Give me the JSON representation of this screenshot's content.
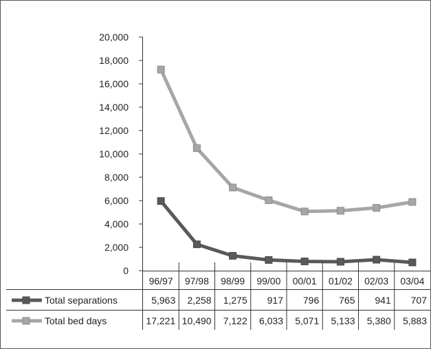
{
  "chart_data": {
    "type": "line",
    "categories": [
      "96/97",
      "97/98",
      "98/99",
      "99/00",
      "00/01",
      "01/02",
      "02/03",
      "03/04"
    ],
    "series": [
      {
        "name": "Total separations",
        "values": [
          5963,
          2258,
          1275,
          917,
          796,
          765,
          941,
          707
        ],
        "labels": [
          "5,963",
          "2,258",
          "1,275",
          "917",
          "796",
          "765",
          "941",
          "707"
        ],
        "color": "#595959"
      },
      {
        "name": "Total bed days",
        "values": [
          17221,
          10490,
          7122,
          6033,
          5071,
          5133,
          5380,
          5883
        ],
        "labels": [
          "17,221",
          "10,490",
          "7,122",
          "6,033",
          "5,071",
          "5,133",
          "5,380",
          "5,883"
        ],
        "color": "#a6a6a6"
      }
    ],
    "y_ticks": [
      "0",
      "2,000",
      "4,000",
      "6,000",
      "8,000",
      "10,000",
      "12,000",
      "14,000",
      "16,000",
      "18,000",
      "20,000"
    ],
    "ylim": [
      0,
      20000
    ],
    "grid": false,
    "legend": "data-table-rows"
  }
}
